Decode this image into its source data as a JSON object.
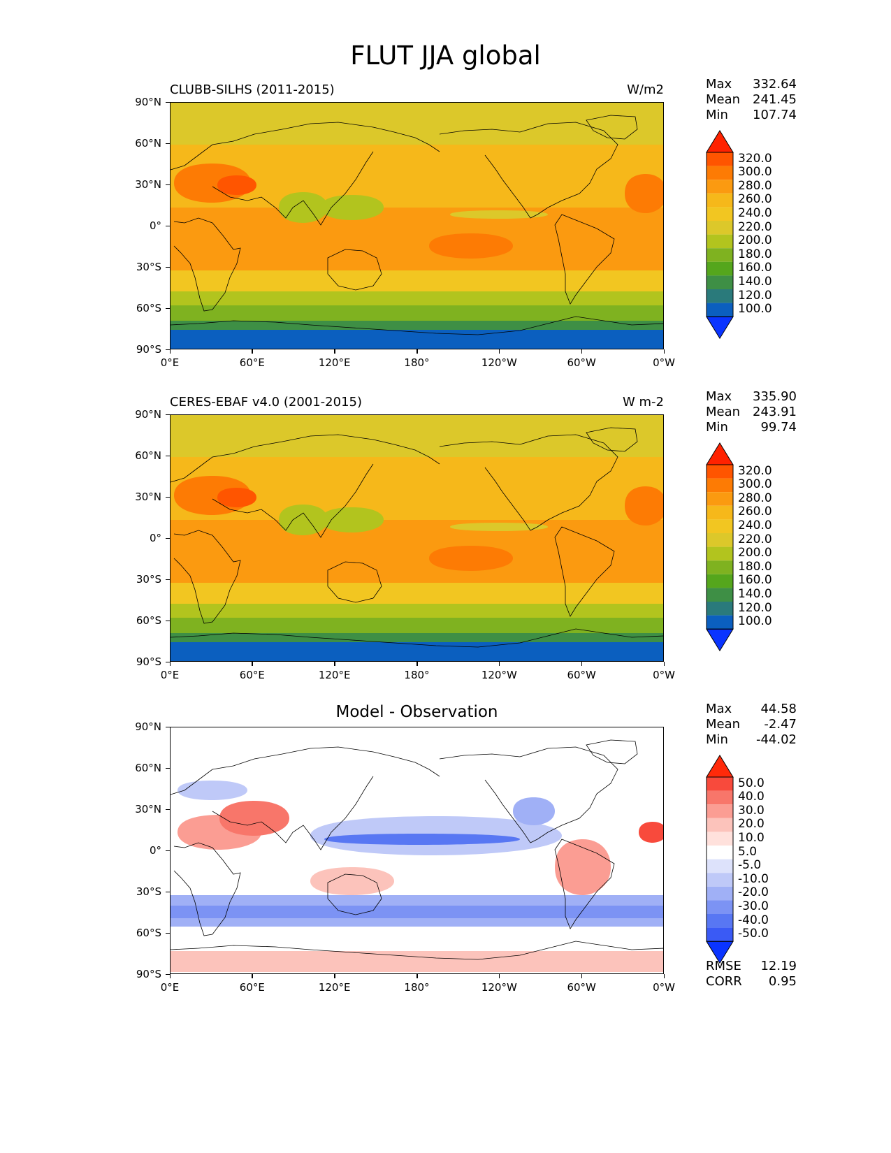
{
  "figure_title": "FLUT JJA global",
  "lat_ticks": [
    "90°N",
    "60°N",
    "30°N",
    "0°",
    "30°S",
    "60°S",
    "90°S"
  ],
  "lon_ticks": [
    "0°E",
    "60°E",
    "120°E",
    "180°",
    "120°W",
    "60°W",
    "0°W"
  ],
  "panels": [
    {
      "title": "CLUBB-SILHS (2011-2015)",
      "units": "W/m2",
      "center_title": "",
      "stats": [
        {
          "label": "Max",
          "value": "332.64"
        },
        {
          "label": "Mean",
          "value": "241.45"
        },
        {
          "label": "Min",
          "value": "107.74"
        }
      ],
      "colorbar": {
        "levels": [
          "320.0",
          "300.0",
          "280.0",
          "260.0",
          "240.0",
          "220.0",
          "200.0",
          "180.0",
          "160.0",
          "140.0",
          "120.0",
          "100.0"
        ],
        "colors": [
          "#ff2200",
          "#ff5500",
          "#fd7b04",
          "#fb9a10",
          "#f6b81a",
          "#f2c621",
          "#dcc82a",
          "#b2c41e",
          "#7fb220",
          "#55a61c",
          "#3e8f45",
          "#2a7a7b",
          "#0b5fbf",
          "#0a34ff"
        ]
      }
    },
    {
      "title": "CERES-EBAF v4.0 (2001-2015)",
      "units": "W m-2",
      "center_title": "",
      "stats": [
        {
          "label": "Max",
          "value": "335.90"
        },
        {
          "label": "Mean",
          "value": "243.91"
        },
        {
          "label": "Min",
          "value": "99.74"
        }
      ],
      "colorbar": {
        "levels": [
          "320.0",
          "300.0",
          "280.0",
          "260.0",
          "240.0",
          "220.0",
          "200.0",
          "180.0",
          "160.0",
          "140.0",
          "120.0",
          "100.0"
        ],
        "colors": [
          "#ff2200",
          "#ff5500",
          "#fd7b04",
          "#fb9a10",
          "#f6b81a",
          "#f2c621",
          "#dcc82a",
          "#b2c41e",
          "#7fb220",
          "#55a61c",
          "#3e8f45",
          "#2a7a7b",
          "#0b5fbf",
          "#0a34ff"
        ]
      }
    },
    {
      "title": "",
      "units": "",
      "center_title": "Model - Observation",
      "stats": [
        {
          "label": "Max",
          "value": "44.58"
        },
        {
          "label": "Mean",
          "value": "-2.47"
        },
        {
          "label": "Min",
          "value": "-44.02"
        }
      ],
      "extra_stats": [
        {
          "label": "RMSE",
          "value": "12.19"
        },
        {
          "label": "CORR",
          "value": "0.95"
        }
      ],
      "colorbar": {
        "levels": [
          "50.0",
          "40.0",
          "30.0",
          "20.0",
          "10.0",
          "5.0",
          "-5.0",
          "-10.0",
          "-20.0",
          "-30.0",
          "-40.0",
          "-50.0"
        ],
        "colors": [
          "#ff2a0a",
          "#f84a3c",
          "#f8766a",
          "#fb9d93",
          "#fcc3bb",
          "#ffe1dc",
          "#ffffff",
          "#dde2fb",
          "#bfc9f8",
          "#a0b0f6",
          "#7c93f4",
          "#5877f3",
          "#3a5af5",
          "#0a34ff"
        ]
      }
    }
  ]
}
